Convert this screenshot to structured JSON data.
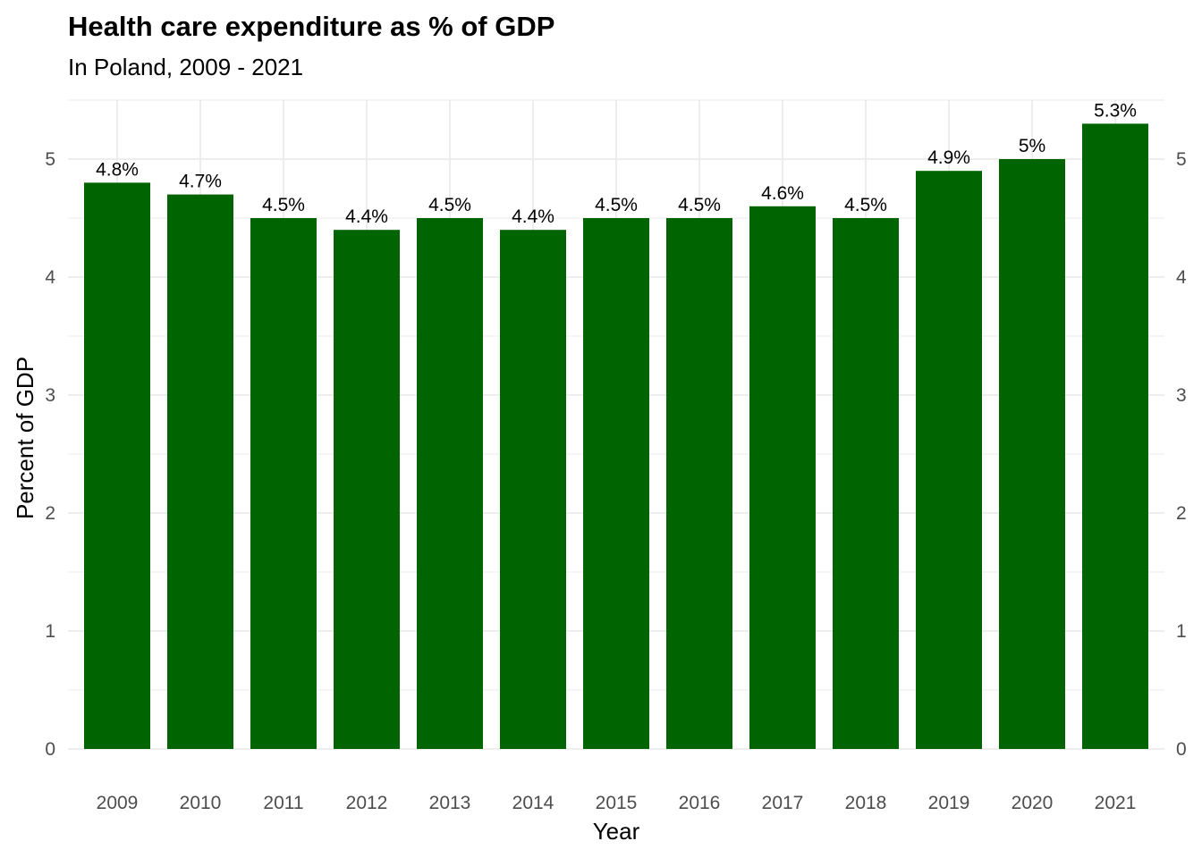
{
  "chart_data": {
    "type": "bar",
    "title": "Health care expenditure as % of GDP",
    "subtitle": "In Poland, 2009 - 2021",
    "xlabel": "Year",
    "ylabel": "Percent of GDP",
    "categories": [
      "2009",
      "2010",
      "2011",
      "2012",
      "2013",
      "2014",
      "2015",
      "2016",
      "2017",
      "2018",
      "2019",
      "2020",
      "2021"
    ],
    "values": [
      4.8,
      4.7,
      4.5,
      4.4,
      4.5,
      4.4,
      4.5,
      4.5,
      4.6,
      4.5,
      4.9,
      5.0,
      5.3
    ],
    "data_labels": [
      "4.8%",
      "4.7%",
      "4.5%",
      "4.4%",
      "4.5%",
      "4.4%",
      "4.5%",
      "4.5%",
      "4.6%",
      "4.5%",
      "4.9%",
      "5%",
      "5.3%"
    ],
    "ylim": [
      0,
      5.5
    ],
    "yticks": [
      0,
      1,
      2,
      3,
      4,
      5
    ],
    "secondary_y_axis": true,
    "grid": true,
    "bar_color": "#006400",
    "gridline_color": "#ebebeb"
  }
}
